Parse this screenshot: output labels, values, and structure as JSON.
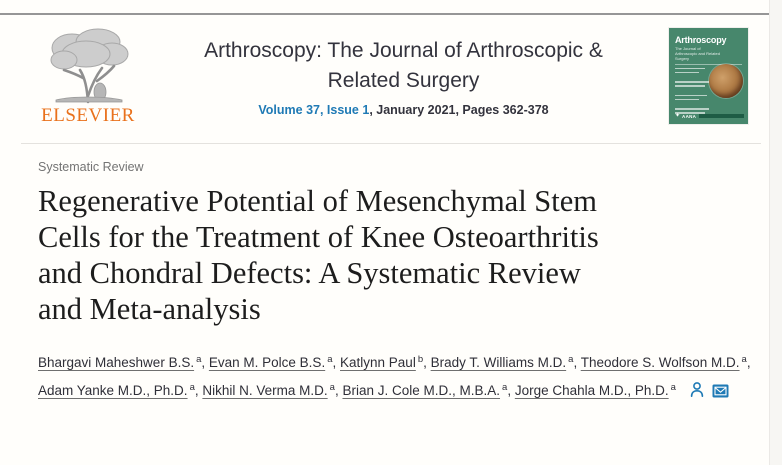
{
  "header": {
    "publisher": "ELSEVIER",
    "journal_title_line1": "Arthroscopy: The Journal of Arthroscopic &",
    "journal_title_line2": "Related Surgery",
    "volume_link": "Volume 37, Issue 1",
    "issue_rest": ", January 2021, Pages 362-378",
    "cover": {
      "title": "Arthroscopy",
      "subtitle": "The Journal of Arthroscopic and Related Surgery",
      "society": "AANA"
    }
  },
  "article": {
    "type_label": "Systematic Review",
    "title": "Regenerative Potential of Mesenchymal Stem Cells for the Treatment of Knee Osteoarthritis and Chondral Defects: A Systematic Review and Meta-analysis",
    "title_lines": [
      "Regenerative Potential of Mesenchymal Stem",
      "Cells for the Treatment of Knee Osteoarthritis",
      "and Chondral Defects: A Systematic Review",
      "and Meta-analysis"
    ],
    "authors": [
      {
        "name": "Bhargavi Maheshwer B.S.",
        "sup": "a"
      },
      {
        "name": "Evan M. Polce B.S.",
        "sup": "a"
      },
      {
        "name": "Katlynn Paul",
        "sup": "b"
      },
      {
        "name": "Brady T. Williams M.D.",
        "sup": "a"
      },
      {
        "name": "Theodore S. Wolfson M.D.",
        "sup": "a"
      },
      {
        "name": "Adam Yanke M.D., Ph.D.",
        "sup": "a"
      },
      {
        "name": "Nikhil N. Verma M.D.",
        "sup": "a"
      },
      {
        "name": "Brian J. Cole M.D., M.B.A.",
        "sup": "a"
      },
      {
        "name": "Jorge Chahla M.D., Ph.D.",
        "sup": "a"
      }
    ]
  },
  "colors": {
    "elsevier_orange": "#e9711c",
    "link_blue": "#1f7ab5",
    "cover_green": "#47876c",
    "cover_green_dark": "#1e5c45",
    "text_dark": "#2f2f38",
    "label_gray": "#747474"
  }
}
